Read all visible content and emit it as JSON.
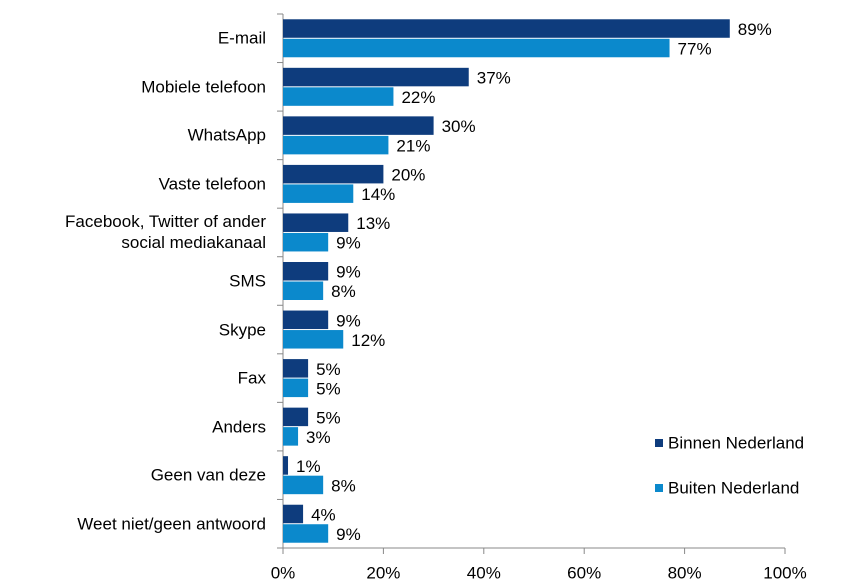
{
  "chart_data": {
    "type": "bar",
    "orientation": "horizontal",
    "categories": [
      "E-mail",
      "Mobiele telefoon",
      "WhatsApp",
      "Vaste telefoon",
      "Facebook, Twitter of ander\nsocial mediakanaal",
      "SMS",
      "Skype",
      "Fax",
      "Anders",
      "Geen van deze",
      "Weet niet/geen antwoord"
    ],
    "series": [
      {
        "name": "Binnen Nederland",
        "color": "#0e3c7d",
        "values": [
          89,
          37,
          30,
          20,
          13,
          9,
          9,
          5,
          5,
          1,
          4
        ],
        "value_labels": [
          "89%",
          "37%",
          "30%",
          "20%",
          "13%",
          "9%",
          "9%",
          "5%",
          "5%",
          "1%",
          "4%"
        ]
      },
      {
        "name": "Buiten Nederland",
        "color": "#0b89cc",
        "values": [
          77,
          22,
          21,
          14,
          9,
          8,
          12,
          5,
          3,
          8,
          9
        ],
        "value_labels": [
          "77%",
          "22%",
          "21%",
          "14%",
          "9%",
          "8%",
          "12%",
          "5%",
          "3%",
          "8%",
          "9%"
        ]
      }
    ],
    "xlim": [
      0,
      100
    ],
    "xticks": [
      {
        "value": 0,
        "label": "0%"
      },
      {
        "value": 20,
        "label": "20%"
      },
      {
        "value": 40,
        "label": "40%"
      },
      {
        "value": 60,
        "label": "60%"
      },
      {
        "value": 80,
        "label": "80%"
      },
      {
        "value": 100,
        "label": "100%"
      }
    ],
    "grid": false,
    "legend": "lower right"
  }
}
